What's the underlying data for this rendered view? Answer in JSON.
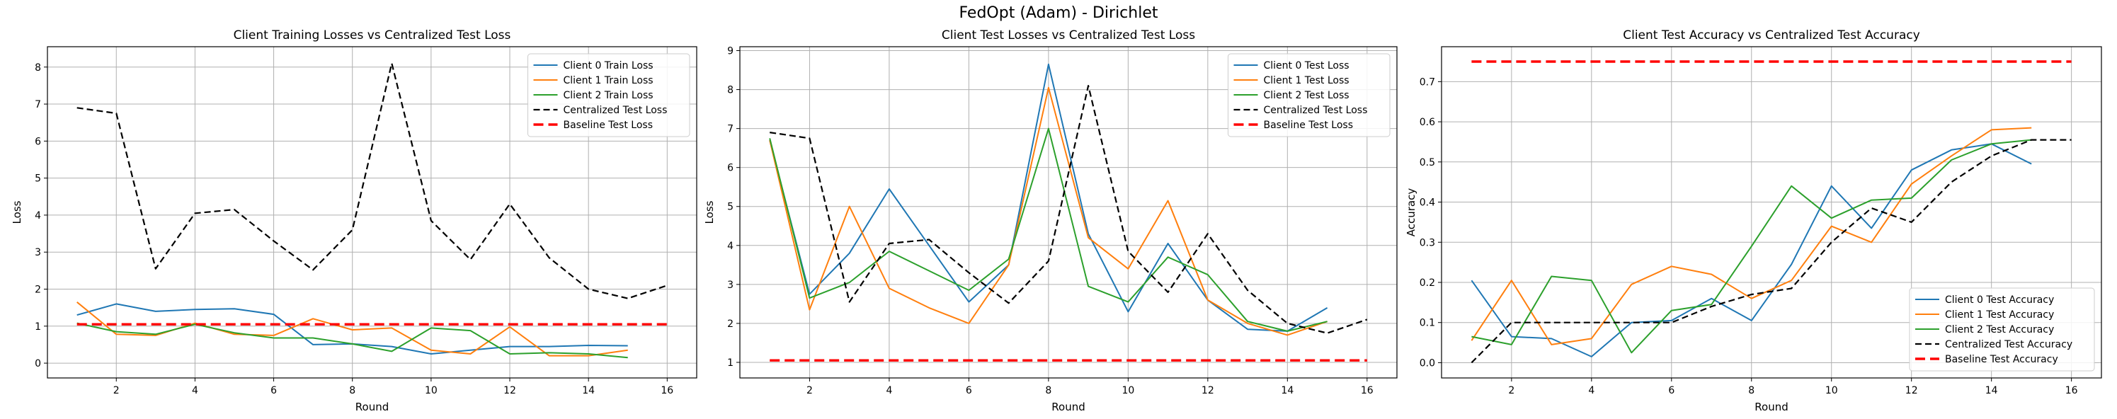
{
  "figure": {
    "suptitle": "FedOpt (Adam) - Dirichlet"
  },
  "colors": {
    "client0": "#1f77b4",
    "client1": "#ff7f0e",
    "client2": "#2ca02c",
    "centralized": "#000000",
    "baseline": "#ff0000",
    "grid": "#b0b0b0"
  },
  "chart_data": [
    {
      "type": "line",
      "title": "Client Training Losses vs Centralized Test Loss",
      "xlabel": "Round",
      "ylabel": "Loss",
      "xlim": [
        0.25,
        16.75
      ],
      "ylim": [
        -0.4,
        8.55
      ],
      "xticks": [
        2,
        4,
        6,
        8,
        10,
        12,
        14,
        16
      ],
      "yticks": [
        0,
        1,
        2,
        3,
        4,
        5,
        6,
        7,
        8
      ],
      "grid": true,
      "legend_position": "upper right",
      "series": [
        {
          "name": "Client 0 Train Loss",
          "style": "solid",
          "color": "#1f77b4",
          "x": [
            1,
            2,
            3,
            4,
            5,
            6,
            7,
            8,
            9,
            10,
            11,
            12,
            13,
            14,
            15
          ],
          "y": [
            1.3,
            1.6,
            1.4,
            1.45,
            1.47,
            1.32,
            0.5,
            0.52,
            0.45,
            0.25,
            0.35,
            0.45,
            0.45,
            0.48,
            0.47
          ]
        },
        {
          "name": "Client 1 Train Loss",
          "style": "solid",
          "color": "#ff7f0e",
          "x": [
            1,
            2,
            3,
            4,
            5,
            6,
            7,
            8,
            9,
            10,
            11,
            12,
            13,
            14,
            15
          ],
          "y": [
            1.65,
            0.78,
            0.75,
            1.08,
            0.78,
            0.75,
            1.2,
            0.9,
            0.95,
            0.35,
            0.25,
            0.98,
            0.2,
            0.2,
            0.35
          ]
        },
        {
          "name": "Client 2 Train Loss",
          "style": "solid",
          "color": "#2ca02c",
          "x": [
            1,
            2,
            3,
            4,
            5,
            6,
            7,
            8,
            9,
            10,
            11,
            12,
            13,
            14,
            15
          ],
          "y": [
            1.08,
            0.85,
            0.78,
            1.05,
            0.82,
            0.68,
            0.68,
            0.52,
            0.32,
            0.95,
            0.88,
            0.25,
            0.28,
            0.25,
            0.15
          ]
        },
        {
          "name": "Centralized Test Loss",
          "style": "dashed",
          "color": "#000000",
          "x": [
            1,
            2,
            3,
            4,
            5,
            6,
            7,
            8,
            9,
            10,
            11,
            12,
            13,
            14,
            15,
            16
          ],
          "y": [
            6.9,
            6.75,
            2.55,
            4.05,
            4.15,
            3.3,
            2.52,
            3.6,
            8.1,
            3.85,
            2.8,
            4.3,
            2.85,
            2.0,
            1.75,
            2.1
          ]
        },
        {
          "name": "Baseline Test Loss",
          "style": "bold-dashed",
          "color": "#ff0000",
          "x": [
            1,
            16
          ],
          "y": [
            1.05,
            1.05
          ]
        }
      ]
    },
    {
      "type": "line",
      "title": "Client Test Losses vs Centralized Test Loss",
      "xlabel": "Round",
      "ylabel": "Loss",
      "xlim": [
        0.25,
        16.75
      ],
      "ylim": [
        0.6,
        9.1
      ],
      "xticks": [
        2,
        4,
        6,
        8,
        10,
        12,
        14,
        16
      ],
      "yticks": [
        1,
        2,
        3,
        4,
        5,
        6,
        7,
        8,
        9
      ],
      "grid": true,
      "legend_position": "upper right",
      "series": [
        {
          "name": "Client 0 Test Loss",
          "style": "solid",
          "color": "#1f77b4",
          "x": [
            1,
            2,
            3,
            4,
            5,
            6,
            7,
            8,
            9,
            10,
            11,
            12,
            13,
            14,
            15
          ],
          "y": [
            6.7,
            2.75,
            3.8,
            5.45,
            4.0,
            2.55,
            3.5,
            8.65,
            4.3,
            2.3,
            4.05,
            2.6,
            1.85,
            1.8,
            2.4
          ]
        },
        {
          "name": "Client 1 Test Loss",
          "style": "solid",
          "color": "#ff7f0e",
          "x": [
            1,
            2,
            3,
            4,
            5,
            6,
            7,
            8,
            9,
            10,
            11,
            12,
            13,
            14,
            15
          ],
          "y": [
            6.7,
            2.35,
            5.0,
            2.9,
            2.4,
            2.0,
            3.5,
            8.05,
            4.2,
            3.4,
            5.15,
            2.6,
            2.0,
            1.7,
            2.05
          ]
        },
        {
          "name": "Client 2 Test Loss",
          "style": "solid",
          "color": "#2ca02c",
          "x": [
            1,
            2,
            3,
            4,
            5,
            6,
            7,
            8,
            9,
            10,
            11,
            12,
            13,
            14,
            15
          ],
          "y": [
            6.75,
            2.65,
            3.05,
            3.85,
            3.35,
            2.85,
            3.65,
            7.0,
            2.95,
            2.55,
            3.7,
            3.25,
            2.05,
            1.8,
            2.05
          ]
        },
        {
          "name": "Centralized Test Loss",
          "style": "dashed",
          "color": "#000000",
          "x": [
            1,
            2,
            3,
            4,
            5,
            6,
            7,
            8,
            9,
            10,
            11,
            12,
            13,
            14,
            15,
            16
          ],
          "y": [
            6.9,
            6.75,
            2.55,
            4.05,
            4.15,
            3.3,
            2.52,
            3.6,
            8.1,
            3.85,
            2.8,
            4.3,
            2.85,
            2.0,
            1.75,
            2.1
          ]
        },
        {
          "name": "Baseline Test Loss",
          "style": "bold-dashed",
          "color": "#ff0000",
          "x": [
            1,
            16
          ],
          "y": [
            1.05,
            1.05
          ]
        }
      ]
    },
    {
      "type": "line",
      "title": "Client Test Accuracy vs Centralized Test Accuracy",
      "xlabel": "Round",
      "ylabel": "Accuracy",
      "xlim": [
        0.25,
        16.75
      ],
      "ylim": [
        -0.038,
        0.787
      ],
      "xticks": [
        2,
        4,
        6,
        8,
        10,
        12,
        14,
        16
      ],
      "yticks": [
        0.0,
        0.1,
        0.2,
        0.3,
        0.4,
        0.5,
        0.6,
        0.7
      ],
      "ytick_labels": [
        "0.0",
        "0.1",
        "0.2",
        "0.3",
        "0.4",
        "0.5",
        "0.6",
        "0.7"
      ],
      "grid": true,
      "legend_position": "lower right",
      "series": [
        {
          "name": "Client 0 Test Accuracy",
          "style": "solid",
          "color": "#1f77b4",
          "x": [
            1,
            2,
            3,
            4,
            5,
            6,
            7,
            8,
            9,
            10,
            11,
            12,
            13,
            14,
            15
          ],
          "y": [
            0.205,
            0.065,
            0.06,
            0.015,
            0.1,
            0.105,
            0.16,
            0.105,
            0.245,
            0.44,
            0.335,
            0.48,
            0.53,
            0.545,
            0.495
          ]
        },
        {
          "name": "Client 1 Test Accuracy",
          "style": "solid",
          "color": "#ff7f0e",
          "x": [
            1,
            2,
            3,
            4,
            5,
            6,
            7,
            8,
            9,
            10,
            11,
            12,
            13,
            14,
            15
          ],
          "y": [
            0.055,
            0.205,
            0.045,
            0.06,
            0.195,
            0.24,
            0.22,
            0.16,
            0.205,
            0.34,
            0.3,
            0.445,
            0.515,
            0.58,
            0.585
          ]
        },
        {
          "name": "Client 2 Test Accuracy",
          "style": "solid",
          "color": "#2ca02c",
          "x": [
            1,
            2,
            3,
            4,
            5,
            6,
            7,
            8,
            9,
            10,
            11,
            12,
            13,
            14,
            15
          ],
          "y": [
            0.065,
            0.045,
            0.215,
            0.205,
            0.025,
            0.13,
            0.145,
            0.29,
            0.44,
            0.36,
            0.405,
            0.41,
            0.505,
            0.545,
            0.555
          ]
        },
        {
          "name": "Centralized Test Accuracy",
          "style": "dashed",
          "color": "#000000",
          "x": [
            1,
            2,
            3,
            4,
            5,
            6,
            7,
            8,
            9,
            10,
            11,
            12,
            13,
            14,
            15,
            16
          ],
          "y": [
            0.0,
            0.1,
            0.1,
            0.1,
            0.1,
            0.1,
            0.14,
            0.17,
            0.185,
            0.3,
            0.385,
            0.35,
            0.45,
            0.515,
            0.555,
            0.555
          ]
        },
        {
          "name": "Baseline Test Accuracy",
          "style": "bold-dashed",
          "color": "#ff0000",
          "x": [
            1,
            16
          ],
          "y": [
            0.75,
            0.75
          ]
        }
      ]
    }
  ]
}
